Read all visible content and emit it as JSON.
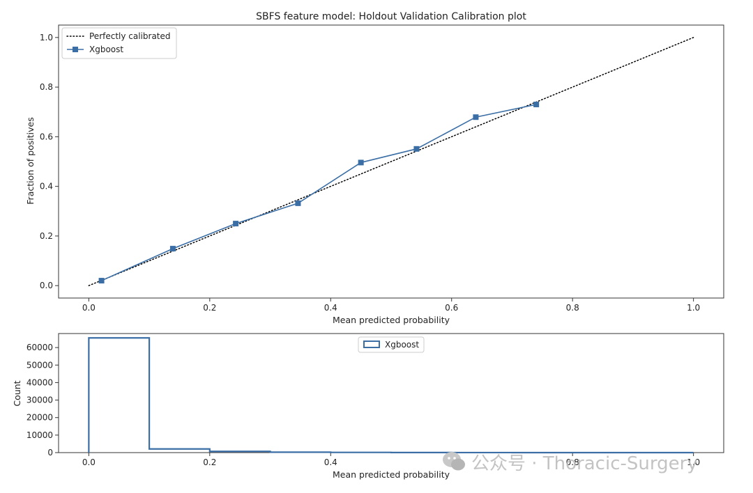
{
  "chart_data": [
    {
      "type": "line",
      "title": "SBFS feature model: Holdout Validation Calibration plot",
      "xlabel": "Mean predicted probability",
      "ylabel": "Fraction of positives",
      "xlim": [
        -0.05,
        1.05
      ],
      "ylim": [
        -0.05,
        1.05
      ],
      "xticks": [
        0.0,
        0.2,
        0.4,
        0.6,
        0.8,
        1.0
      ],
      "yticks": [
        0.0,
        0.2,
        0.4,
        0.6,
        0.8,
        1.0
      ],
      "xtick_labels": [
        "0.0",
        "0.2",
        "0.4",
        "0.6",
        "0.8",
        "1.0"
      ],
      "ytick_labels": [
        "0.0",
        "0.2",
        "0.4",
        "0.6",
        "0.8",
        "1.0"
      ],
      "legend_position": "top-left",
      "series": [
        {
          "name": "Perfectly calibrated",
          "style": "dotted",
          "color": "#000000",
          "x": [
            0.0,
            1.0
          ],
          "y": [
            0.0,
            1.0
          ]
        },
        {
          "name": "Xgboost",
          "style": "line-square-markers",
          "color": "#3a6ea5",
          "x": [
            0.021,
            0.139,
            0.243,
            0.346,
            0.45,
            0.542,
            0.64,
            0.74
          ],
          "y": [
            0.02,
            0.149,
            0.25,
            0.332,
            0.496,
            0.551,
            0.679,
            0.73
          ]
        }
      ]
    },
    {
      "type": "histogram",
      "title": "",
      "xlabel": "Mean predicted probability",
      "ylabel": "Count",
      "xlim": [
        -0.05,
        1.05
      ],
      "ylim": [
        0,
        68000
      ],
      "xticks": [
        0.0,
        0.2,
        0.4,
        0.6,
        0.8,
        1.0
      ],
      "yticks": [
        0,
        10000,
        20000,
        30000,
        40000,
        50000,
        60000
      ],
      "xtick_labels": [
        "0.0",
        "0.2",
        "0.4",
        "0.6",
        "0.8",
        "1.0"
      ],
      "ytick_labels": [
        "0",
        "10000",
        "20000",
        "30000",
        "40000",
        "50000",
        "60000"
      ],
      "legend_position": "top-center",
      "series": [
        {
          "name": "Xgboost",
          "style": "step",
          "color": "#3a6ea5",
          "bin_edges": [
            0.0,
            0.1,
            0.2,
            0.3,
            0.4,
            0.5,
            0.6,
            0.7,
            0.8,
            0.9,
            1.0
          ],
          "counts": [
            65500,
            2100,
            700,
            250,
            120,
            60,
            20,
            0,
            0,
            0
          ]
        }
      ]
    }
  ],
  "watermark": {
    "text": "公众号 · Thoracic-Surgery",
    "icon": "wechat-icon"
  }
}
